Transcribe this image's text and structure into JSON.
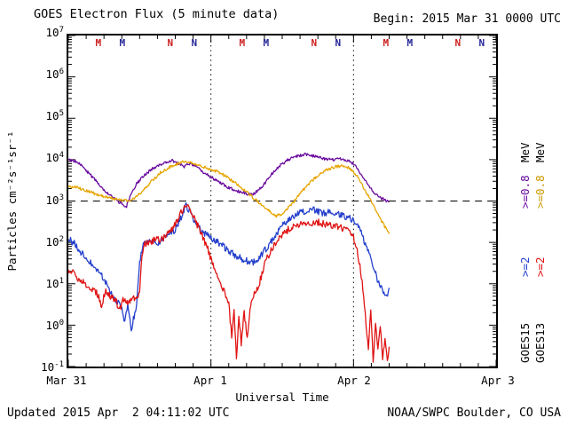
{
  "header": {
    "title": "GOES Electron Flux (5 minute data)",
    "begin_label": "Begin: 2015 Mar 31 0000 UTC"
  },
  "footer": {
    "updated": "Updated 2015 Apr  2 04:11:02 UTC",
    "source": "NOAA/SWPC Boulder, CO USA"
  },
  "chart_data": {
    "type": "line",
    "title": "GOES Electron Flux (5 minute data)",
    "xlabel": "Universal Time",
    "ylabel": "Particles cm⁻²s⁻¹sr⁻¹",
    "x_range_hours": [
      0,
      72
    ],
    "y_log_range": [
      -1,
      7
    ],
    "grid": "day boundaries dotted, 10^3 threshold dashed",
    "x_ticks": [
      {
        "hour": 0,
        "label": "Mar 31"
      },
      {
        "hour": 24,
        "label": "Apr 1"
      },
      {
        "hour": 48,
        "label": "Apr 2"
      },
      {
        "hour": 72,
        "label": "Apr 3"
      }
    ],
    "y_tick_exponents": [
      7,
      6,
      5,
      4,
      3,
      2,
      1,
      0,
      -1
    ],
    "threshold_value": 1000,
    "day_gridlines_hours": [
      24,
      48
    ],
    "top_markers": [
      {
        "hour": 5,
        "label": "M",
        "color": "#cc2020"
      },
      {
        "hour": 9,
        "label": "M",
        "color": "#262699"
      },
      {
        "hour": 17,
        "label": "N",
        "color": "#cc2020"
      },
      {
        "hour": 21,
        "label": "N",
        "color": "#262699"
      },
      {
        "hour": 29,
        "label": "M",
        "color": "#cc2020"
      },
      {
        "hour": 33,
        "label": "M",
        "color": "#262699"
      },
      {
        "hour": 41,
        "label": "N",
        "color": "#cc2020"
      },
      {
        "hour": 45,
        "label": "N",
        "color": "#262699"
      },
      {
        "hour": 53,
        "label": "M",
        "color": "#cc2020"
      },
      {
        "hour": 57,
        "label": "M",
        "color": "#262699"
      },
      {
        "hour": 65,
        "label": "N",
        "color": "#cc2020"
      },
      {
        "hour": 69,
        "label": "N",
        "color": "#262699"
      }
    ],
    "legend": {
      "goes15": {
        "satellite": "GOES15",
        "e2": ">=2",
        "e08": ">=0.8",
        "unit": "MeV",
        "colors": {
          "sat": "#000000",
          "e2": "#2440cc",
          "e08": "#6a0b9e",
          "unit": "#000000"
        }
      },
      "goes13": {
        "satellite": "GOES13",
        "e2": ">=2",
        "e08": ">=0.8",
        "unit": "MeV",
        "colors": {
          "sat": "#000000",
          "e2": "#e01212",
          "e08": "#cc9900",
          "unit": "#000000"
        }
      }
    },
    "series": [
      {
        "name": "GOES15 >=0.8 MeV",
        "color": "#6a0b9e",
        "noise": 0.035,
        "points": [
          [
            0,
            10000
          ],
          [
            1.5,
            9000
          ],
          [
            3,
            5500
          ],
          [
            4.5,
            3200
          ],
          [
            6,
            1900
          ],
          [
            7.5,
            1200
          ],
          [
            9,
            850
          ],
          [
            9.8,
            750
          ],
          [
            10.5,
            1400
          ],
          [
            11.5,
            2600
          ],
          [
            13,
            4500
          ],
          [
            14.5,
            6500
          ],
          [
            16,
            8200
          ],
          [
            17.5,
            9500
          ],
          [
            18.5,
            8000
          ],
          [
            19.5,
            6800
          ],
          [
            20.5,
            8200
          ],
          [
            21.5,
            7000
          ],
          [
            22.5,
            5200
          ],
          [
            24,
            3800
          ],
          [
            25.5,
            2800
          ],
          [
            27,
            2100
          ],
          [
            28.5,
            1750
          ],
          [
            30,
            1500
          ],
          [
            31,
            1450
          ],
          [
            32,
            1800
          ],
          [
            33,
            2600
          ],
          [
            34,
            4200
          ],
          [
            35.5,
            7000
          ],
          [
            37,
            10000
          ],
          [
            38.5,
            12000
          ],
          [
            40,
            13500
          ],
          [
            41.5,
            12000
          ],
          [
            43,
            10500
          ],
          [
            44.5,
            10000
          ],
          [
            46,
            10500
          ],
          [
            47.5,
            9000
          ],
          [
            48.5,
            6500
          ],
          [
            49.5,
            4000
          ],
          [
            50.5,
            2500
          ],
          [
            51.5,
            1600
          ],
          [
            52.5,
            1200
          ],
          [
            53.5,
            1000
          ],
          [
            54,
            950
          ]
        ]
      },
      {
        "name": "GOES13 >=0.8 MeV",
        "color": "#e6a400",
        "noise": 0.035,
        "points": [
          [
            0,
            2300
          ],
          [
            1.5,
            2100
          ],
          [
            3,
            1800
          ],
          [
            4.5,
            1500
          ],
          [
            6,
            1300
          ],
          [
            7.5,
            1150
          ],
          [
            9,
            1050
          ],
          [
            10,
            1000
          ],
          [
            11,
            1150
          ],
          [
            12.5,
            1700
          ],
          [
            14,
            3000
          ],
          [
            15.5,
            4800
          ],
          [
            17,
            6500
          ],
          [
            18.5,
            8200
          ],
          [
            19.5,
            9000
          ],
          [
            20.5,
            8500
          ],
          [
            22,
            7200
          ],
          [
            23.5,
            6200
          ],
          [
            25,
            5200
          ],
          [
            26.5,
            4000
          ],
          [
            28,
            2800
          ],
          [
            29.5,
            1900
          ],
          [
            31,
            1250
          ],
          [
            32.5,
            800
          ],
          [
            34,
            550
          ],
          [
            35,
            430
          ],
          [
            36,
            500
          ],
          [
            37.5,
            800
          ],
          [
            39,
            1500
          ],
          [
            40.5,
            2600
          ],
          [
            42,
            4200
          ],
          [
            43.5,
            5600
          ],
          [
            45,
            6800
          ],
          [
            46.5,
            7000
          ],
          [
            47.5,
            6000
          ],
          [
            48.5,
            4200
          ],
          [
            49.5,
            2400
          ],
          [
            50.5,
            1300
          ],
          [
            51.5,
            700
          ],
          [
            52.5,
            380
          ],
          [
            53.5,
            210
          ],
          [
            54,
            160
          ]
        ]
      },
      {
        "name": "GOES15 >=2 MeV",
        "color": "#2440cc",
        "noise": 0.08,
        "points": [
          [
            0,
            120
          ],
          [
            1,
            95
          ],
          [
            2,
            60
          ],
          [
            3,
            42
          ],
          [
            4,
            30
          ],
          [
            5,
            22
          ],
          [
            6,
            13
          ],
          [
            7,
            7
          ],
          [
            8,
            4
          ],
          [
            9,
            2.5
          ],
          [
            9.5,
            1.1
          ],
          [
            10,
            2.8
          ],
          [
            10.6,
            0.8
          ],
          [
            11.2,
            2
          ],
          [
            11.5,
            3
          ],
          [
            12,
            35
          ],
          [
            12.5,
            80
          ],
          [
            13.2,
            105
          ],
          [
            14,
            115
          ],
          [
            15,
            100
          ],
          [
            16,
            115
          ],
          [
            17,
            145
          ],
          [
            18,
            210
          ],
          [
            19,
            420
          ],
          [
            19.8,
            800
          ],
          [
            20.6,
            480
          ],
          [
            21.4,
            290
          ],
          [
            22.3,
            200
          ],
          [
            23.2,
            155
          ],
          [
            24,
            125
          ],
          [
            25,
            105
          ],
          [
            26,
            82
          ],
          [
            27,
            62
          ],
          [
            28,
            50
          ],
          [
            29,
            42
          ],
          [
            30,
            36
          ],
          [
            31,
            32
          ],
          [
            32,
            42
          ],
          [
            33,
            62
          ],
          [
            34,
            100
          ],
          [
            35,
            155
          ],
          [
            36,
            250
          ],
          [
            37,
            350
          ],
          [
            38,
            450
          ],
          [
            39,
            520
          ],
          [
            40,
            560
          ],
          [
            41,
            620
          ],
          [
            42,
            560
          ],
          [
            43,
            500
          ],
          [
            44,
            530
          ],
          [
            45,
            480
          ],
          [
            46,
            450
          ],
          [
            47,
            410
          ],
          [
            48,
            340
          ],
          [
            48.7,
            260
          ],
          [
            49.4,
            160
          ],
          [
            50,
            90
          ],
          [
            51,
            35
          ],
          [
            52,
            13
          ],
          [
            53,
            6
          ],
          [
            53.6,
            4.5
          ],
          [
            54,
            8
          ]
        ]
      },
      {
        "name": "GOES13 >=2 MeV",
        "color": "#e01212",
        "noise": 0.09,
        "points": [
          [
            0,
            22
          ],
          [
            1,
            17
          ],
          [
            2,
            12
          ],
          [
            3,
            9.5
          ],
          [
            4,
            7.5
          ],
          [
            5,
            5.5
          ],
          [
            5.6,
            3
          ],
          [
            6.2,
            6.5
          ],
          [
            7,
            5
          ],
          [
            8,
            3.8
          ],
          [
            8.6,
            2.2
          ],
          [
            9.2,
            4.5
          ],
          [
            10,
            3.5
          ],
          [
            11,
            4.5
          ],
          [
            12,
            5.5
          ],
          [
            12.4,
            55
          ],
          [
            12.9,
            95
          ],
          [
            13.6,
            105
          ],
          [
            14.5,
            115
          ],
          [
            15.5,
            120
          ],
          [
            16.5,
            140
          ],
          [
            17.5,
            210
          ],
          [
            18.5,
            380
          ],
          [
            19.3,
            650
          ],
          [
            19.8,
            900
          ],
          [
            20.5,
            620
          ],
          [
            21.3,
            350
          ],
          [
            22.2,
            190
          ],
          [
            23.1,
            95
          ],
          [
            24,
            42
          ],
          [
            25,
            16
          ],
          [
            26,
            8
          ],
          [
            27,
            3.2
          ],
          [
            27.5,
            0.6
          ],
          [
            27.9,
            2.2
          ],
          [
            28.3,
            0.16
          ],
          [
            28.7,
            1.6
          ],
          [
            29.1,
            0.35
          ],
          [
            29.6,
            2.2
          ],
          [
            30.1,
            0.5
          ],
          [
            30.7,
            3
          ],
          [
            31.3,
            5.5
          ],
          [
            32.2,
            11
          ],
          [
            33.1,
            30
          ],
          [
            34,
            62
          ],
          [
            35,
            105
          ],
          [
            36,
            150
          ],
          [
            37,
            200
          ],
          [
            38,
            250
          ],
          [
            39,
            285
          ],
          [
            40,
            305
          ],
          [
            41,
            285
          ],
          [
            42,
            305
          ],
          [
            43,
            285
          ],
          [
            44,
            265
          ],
          [
            45,
            250
          ],
          [
            46,
            225
          ],
          [
            47,
            185
          ],
          [
            48,
            125
          ],
          [
            48.6,
            65
          ],
          [
            49.2,
            22
          ],
          [
            49.7,
            6
          ],
          [
            50.1,
            1.1
          ],
          [
            50.5,
            0.3
          ],
          [
            50.9,
            2.2
          ],
          [
            51.3,
            0.13
          ],
          [
            51.7,
            1.1
          ],
          [
            52.1,
            0.32
          ],
          [
            52.5,
            0.9
          ],
          [
            52.9,
            0.16
          ],
          [
            53.3,
            0.45
          ],
          [
            53.7,
            0.13
          ],
          [
            54,
            0.3
          ]
        ]
      }
    ]
  }
}
